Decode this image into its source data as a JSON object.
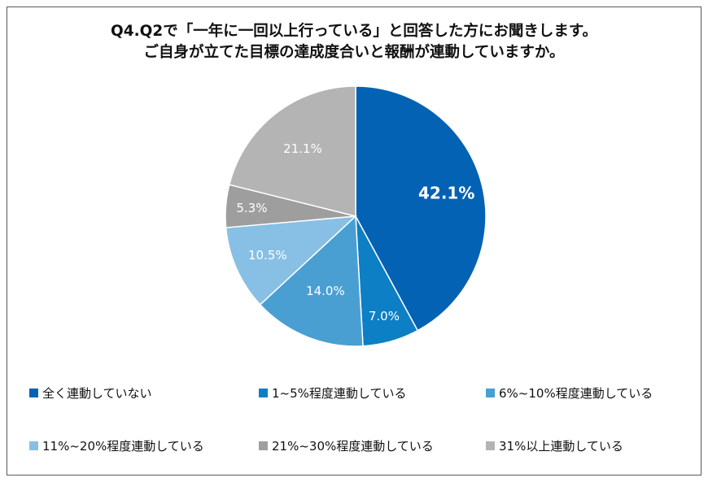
{
  "chart_data": {
    "type": "pie",
    "title_lines": [
      "Q4.Q2で「一年に一回以上行っている」と回答した方にお聞きします。",
      "ご自身が立てた目標の達成度合いと報酬が連動していますか。"
    ],
    "slices": [
      {
        "name": "全く連動していない",
        "value": 42.1,
        "label": "42.1%",
        "color": "#0362b4"
      },
      {
        "name": "1~5%程度連動している",
        "value": 7.0,
        "label": "7.0%",
        "color": "#0d7fc4"
      },
      {
        "name": "6%~10%程度連動している",
        "value": 14.0,
        "label": "14.0%",
        "color": "#4a9fd2"
      },
      {
        "name": "11%~20%程度連動している",
        "value": 10.5,
        "label": "10.5%",
        "color": "#87c0e4"
      },
      {
        "name": "21%~30%程度連動している",
        "value": 5.3,
        "label": "5.3%",
        "color": "#9e9e9e"
      },
      {
        "name": "31%以上連動している",
        "value": 21.1,
        "label": "21.1%",
        "color": "#b4b4b4"
      }
    ],
    "start_angle_deg": 0,
    "direction": "clockwise",
    "legend_position": "bottom"
  }
}
